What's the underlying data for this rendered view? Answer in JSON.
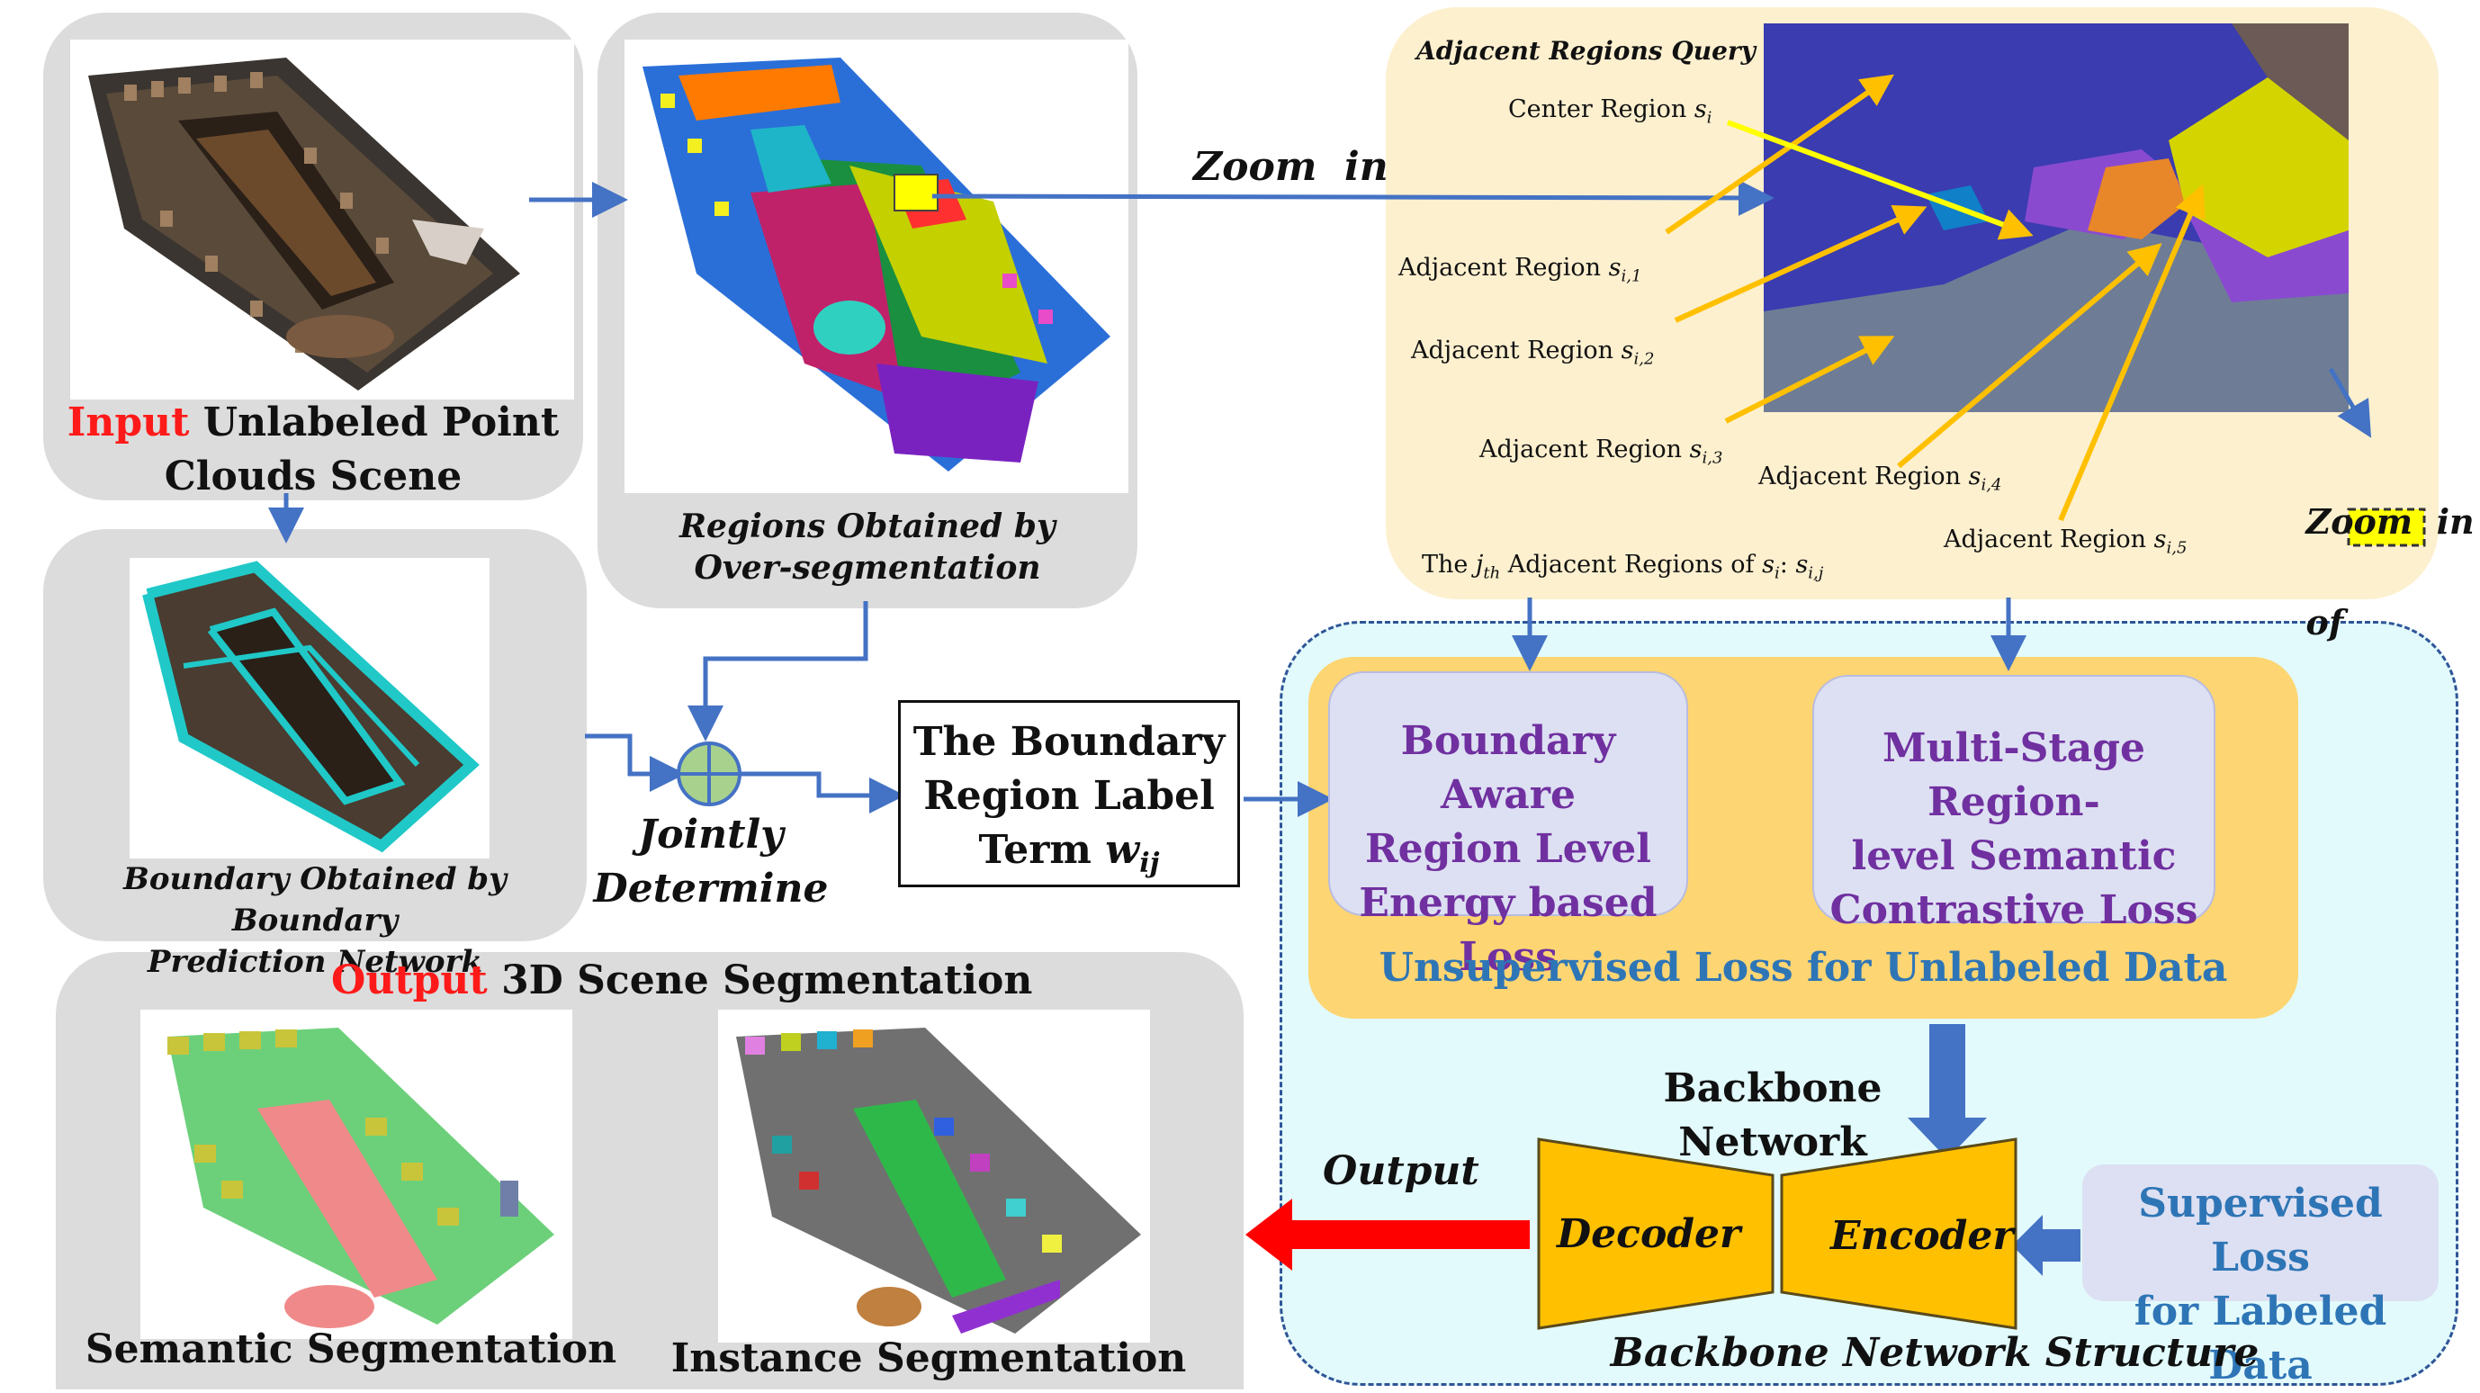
{
  "input_panel": {
    "input_word": "Input",
    "caption_rest": "Unlabeled Point",
    "caption_line2": "Clouds Scene"
  },
  "overseg_panel": {
    "caption_line1": "Regions Obtained by",
    "caption_line2": "Over-segmentation"
  },
  "boundary_panel": {
    "caption_line1": "Boundary Obtained by Boundary",
    "caption_line2": "Prediction Network"
  },
  "zoom_label": "Zoom  in",
  "query_panel": {
    "title": "Adjacent Regions Query",
    "center_region": "Center Region",
    "center_sym": "s",
    "center_sub": "i",
    "adjacent": [
      {
        "label": "Adjacent Region",
        "sym": "s",
        "sub": "i,1"
      },
      {
        "label": "Adjacent Region",
        "sym": "s",
        "sub": "i,2"
      },
      {
        "label": "Adjacent Region",
        "sym": "s",
        "sub": "i,3"
      },
      {
        "label": "Adjacent Region",
        "sym": "s",
        "sub": "i,4"
      },
      {
        "label": "Adjacent Region",
        "sym": "s",
        "sub": "i,5"
      }
    ],
    "jth_prefix": "The",
    "jth_j": "j",
    "jth_sub": "th",
    "jth_mid": "Adjacent Regions of",
    "jth_s": "s",
    "jth_si_sub": "i",
    "jth_colon": ":",
    "jth_sij_sub": "i,j",
    "zoom_of_line1": "Zoom  in",
    "zoom_of_line2": "of"
  },
  "combine": {
    "label_line1": "Jointly",
    "label_line2": "Determine"
  },
  "label_term": {
    "line1": "The Boundary",
    "line2": "Region Label",
    "line3_text": "Term",
    "line3_sym": "w",
    "line3_sub": "ij"
  },
  "losses": {
    "box1": [
      "Boundary Aware",
      "Region Level",
      "Energy based Loss"
    ],
    "box2": [
      "Multi-Stage Region-",
      "level  Semantic",
      "Contrastive Loss"
    ],
    "unsupervised": "Unsupervised Loss for Unlabeled Data"
  },
  "backbone": {
    "title_line1": "Backbone",
    "title_line2": "Network",
    "decoder": "Decoder",
    "encoder": "Encoder",
    "supervised_line1": "Supervised Loss",
    "supervised_line2": "for Labeled Data",
    "structure_caption": "Backbone Network Structure"
  },
  "output_panel": {
    "output_word": "Output",
    "title_rest": "3D Scene Segmentation",
    "arrow_label": "Output",
    "semantic": "Semantic Segmentation",
    "instance": "Instance Segmentation"
  },
  "colors": {
    "panel_gray": "#dcdcdc",
    "cream_panel": "#fdf0cf",
    "light_cyan": "#e2fafc",
    "orange_container": "#fdd572",
    "lavender_box": "#dde0f2",
    "trapezoid_orange": "#ffc000",
    "arrow_blue": "#4472c4",
    "arrow_red": "#ff0000",
    "arrow_yellow": "#ffc000",
    "accent_red_text": "#ff1a1a",
    "purple_text": "#7030a0",
    "blue_text": "#2e75b6"
  }
}
